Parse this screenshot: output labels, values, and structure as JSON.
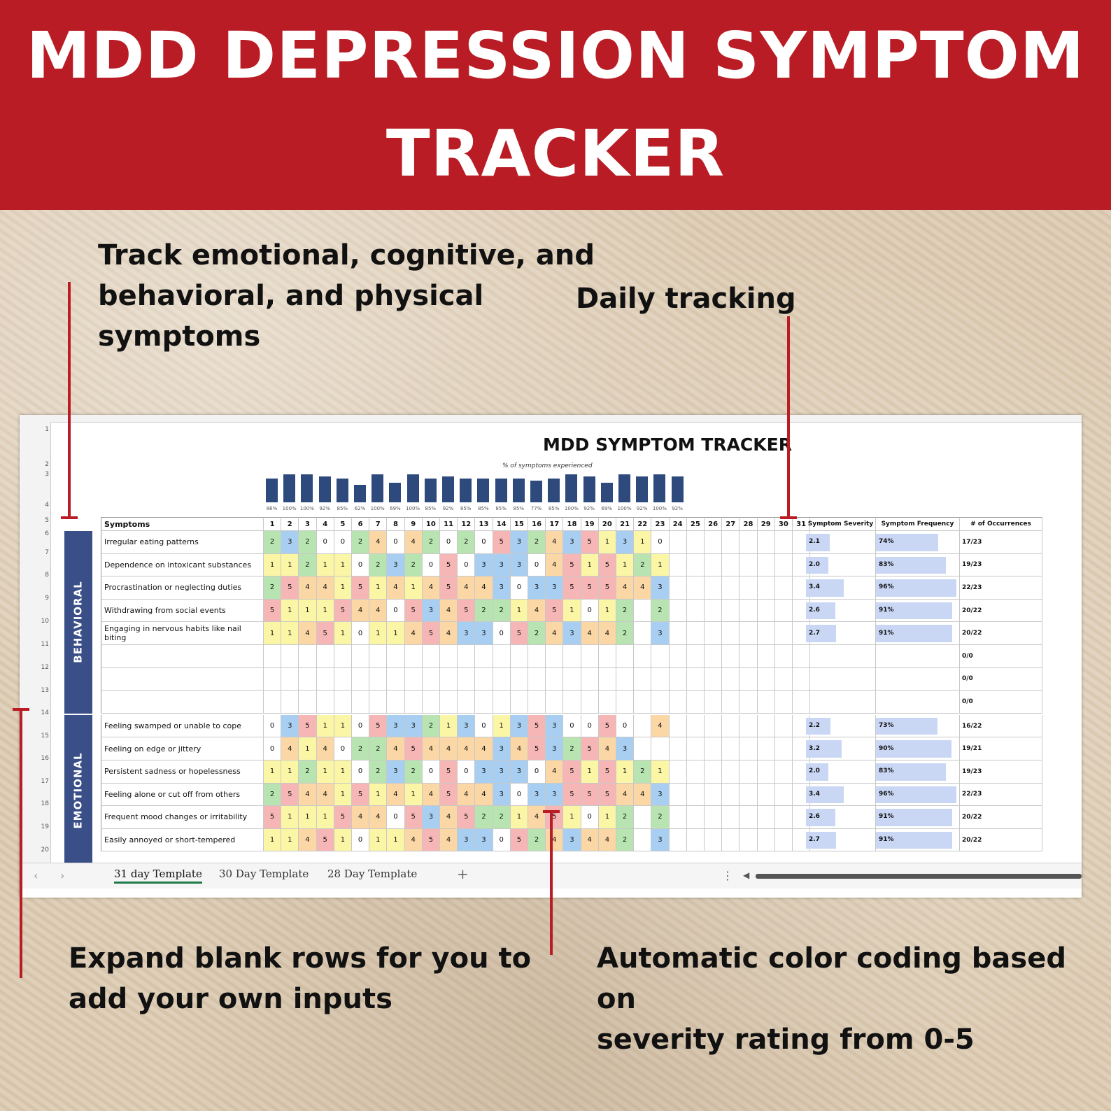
{
  "banner": {
    "title_line1": "MDD DEPRESSION SYMPTOM",
    "title_line2": "TRACKER"
  },
  "callouts": {
    "track": [
      "Track emotional, cognitive, and",
      "behavioral, and physical",
      "symptoms"
    ],
    "daily": "Daily tracking",
    "expand": [
      "Expand blank rows for you to",
      "add your own inputs"
    ],
    "color": [
      "Automatic color coding based on",
      "severity rating from 0-5"
    ]
  },
  "sheet": {
    "title": "MDD SYMPTOM TRACKER",
    "chart_subtitle": "% of symptoms experienced",
    "pct_labels": [
      "86%",
      "100%",
      "100%",
      "92%",
      "85%",
      "62%",
      "100%",
      "69%",
      "100%",
      "85%",
      "92%",
      "85%",
      "85%",
      "85%",
      "85%",
      "77%",
      "85%",
      "100%",
      "92%",
      "69%",
      "100%",
      "92%",
      "100%",
      "92%"
    ],
    "bar_values": [
      0.86,
      1.0,
      1.0,
      0.92,
      0.85,
      0.62,
      1.0,
      0.69,
      1.0,
      0.85,
      0.92,
      0.85,
      0.85,
      0.85,
      0.85,
      0.77,
      0.85,
      1.0,
      0.92,
      0.69,
      1.0,
      0.92,
      1.0,
      0.92
    ],
    "header": {
      "symptoms": "Symptoms",
      "severity": "Symptom Severity",
      "frequency": "Symptom Frequency",
      "occurrences": "# of Occurrences"
    },
    "days": [
      "1",
      "2",
      "3",
      "4",
      "5",
      "6",
      "7",
      "8",
      "9",
      "10",
      "11",
      "12",
      "13",
      "14",
      "15",
      "16",
      "17",
      "18",
      "19",
      "20",
      "21",
      "22",
      "23",
      "24",
      "25",
      "26",
      "27",
      "28",
      "29",
      "30",
      "31"
    ],
    "categories": {
      "behavioral": "BEHAVIORAL",
      "emotional": "EMOTIONAL"
    },
    "row_numbers": [
      "1",
      "2",
      "3",
      "4",
      "5",
      "6",
      "7",
      "8",
      "9",
      "10",
      "11",
      "12",
      "13",
      "14",
      "15",
      "16",
      "17",
      "18",
      "19",
      "20"
    ],
    "rows": [
      {
        "symptom": "Irregular eating patterns",
        "values": [
          2,
          3,
          2,
          0,
          0,
          2,
          4,
          0,
          4,
          2,
          0,
          2,
          0,
          5,
          3,
          2,
          4,
          3,
          5,
          1,
          3,
          1,
          0
        ],
        "severity": "2.1",
        "frequency": "74%",
        "freq_value": 0.74,
        "occurrences": "17/23"
      },
      {
        "symptom": "Dependence on intoxicant substances",
        "values": [
          1,
          1,
          2,
          1,
          1,
          0,
          2,
          3,
          2,
          0,
          5,
          0,
          3,
          3,
          3,
          0,
          4,
          5,
          1,
          5,
          1,
          2,
          1
        ],
        "severity": "2.0",
        "frequency": "83%",
        "freq_value": 0.83,
        "occurrences": "19/23"
      },
      {
        "symptom": "Procrastination or neglecting duties",
        "values": [
          2,
          5,
          4,
          4,
          1,
          5,
          1,
          4,
          1,
          4,
          5,
          4,
          4,
          3,
          0,
          3,
          3,
          5,
          5,
          5,
          4,
          4,
          3
        ],
        "severity": "3.4",
        "frequency": "96%",
        "freq_value": 0.96,
        "occurrences": "22/23"
      },
      {
        "symptom": "Withdrawing from social events",
        "values": [
          5,
          1,
          1,
          1,
          5,
          4,
          4,
          0,
          5,
          3,
          4,
          5,
          2,
          2,
          1,
          4,
          5,
          1,
          0,
          1,
          2,
          null,
          2
        ],
        "severity": "2.6",
        "frequency": "91%",
        "freq_value": 0.91,
        "occurrences": "20/22"
      },
      {
        "symptom": "Engaging in nervous habits like nail biting",
        "values": [
          1,
          1,
          4,
          5,
          1,
          0,
          1,
          1,
          4,
          5,
          4,
          3,
          3,
          0,
          5,
          2,
          4,
          3,
          4,
          4,
          2,
          null,
          3
        ],
        "severity": "2.7",
        "frequency": "91%",
        "freq_value": 0.91,
        "occurrences": "20/22"
      },
      {
        "symptom": "",
        "values": [],
        "severity": "",
        "frequency": "",
        "freq_value": 0,
        "occurrences": "0/0"
      },
      {
        "symptom": "",
        "values": [],
        "severity": "",
        "frequency": "",
        "freq_value": 0,
        "occurrences": "0/0"
      },
      {
        "symptom": "",
        "values": [],
        "severity": "",
        "frequency": "",
        "freq_value": 0,
        "occurrences": "0/0"
      },
      {
        "symptom": "Feeling swamped or unable to cope",
        "values": [
          0,
          3,
          5,
          1,
          1,
          0,
          5,
          3,
          3,
          2,
          1,
          3,
          0,
          1,
          3,
          5,
          3,
          0,
          0,
          5,
          0,
          null,
          4
        ],
        "severity": "2.2",
        "frequency": "73%",
        "freq_value": 0.73,
        "occurrences": "16/22"
      },
      {
        "symptom": "Feeling on edge or jittery",
        "values": [
          0,
          4,
          1,
          4,
          0,
          2,
          2,
          4,
          5,
          4,
          4,
          4,
          4,
          3,
          4,
          5,
          3,
          2,
          5,
          4,
          3,
          null,
          null
        ],
        "severity": "3.2",
        "frequency": "90%",
        "freq_value": 0.9,
        "occurrences": "19/21"
      },
      {
        "symptom": "Persistent sadness or hopelessness",
        "values": [
          1,
          1,
          2,
          1,
          1,
          0,
          2,
          3,
          2,
          0,
          5,
          0,
          3,
          3,
          3,
          0,
          4,
          5,
          1,
          5,
          1,
          2,
          1
        ],
        "severity": "2.0",
        "frequency": "83%",
        "freq_value": 0.83,
        "occurrences": "19/23"
      },
      {
        "symptom": "Feeling alone or cut off from others",
        "values": [
          2,
          5,
          4,
          4,
          1,
          5,
          1,
          4,
          1,
          4,
          5,
          4,
          4,
          3,
          0,
          3,
          3,
          5,
          5,
          5,
          4,
          4,
          3
        ],
        "severity": "3.4",
        "frequency": "96%",
        "freq_value": 0.96,
        "occurrences": "22/23"
      },
      {
        "symptom": "Frequent mood changes or irritability",
        "values": [
          5,
          1,
          1,
          1,
          5,
          4,
          4,
          0,
          5,
          3,
          4,
          5,
          2,
          2,
          1,
          4,
          5,
          1,
          0,
          1,
          2,
          null,
          2
        ],
        "severity": "2.6",
        "frequency": "91%",
        "freq_value": 0.91,
        "occurrences": "20/22"
      },
      {
        "symptom": "Easily annoyed or short-tempered",
        "values": [
          1,
          1,
          4,
          5,
          1,
          0,
          1,
          1,
          4,
          5,
          4,
          3,
          3,
          0,
          5,
          2,
          4,
          3,
          4,
          4,
          2,
          null,
          3
        ],
        "severity": "2.7",
        "frequency": "91%",
        "freq_value": 0.91,
        "occurrences": "20/22"
      }
    ],
    "tabs": [
      "31 day Template",
      "30 Day Template",
      "28 Day Template"
    ],
    "add_tab": "+"
  },
  "colors": {
    "0": "#ffffff",
    "1": "#fbf5a6",
    "2": "#b7e4b0",
    "3": "#a8cff2",
    "4": "#fbd7a6",
    "5": "#f6b6b6",
    "accent": "#b91c24",
    "category": "#3a4f87",
    "bar": "#2e4a7d"
  }
}
